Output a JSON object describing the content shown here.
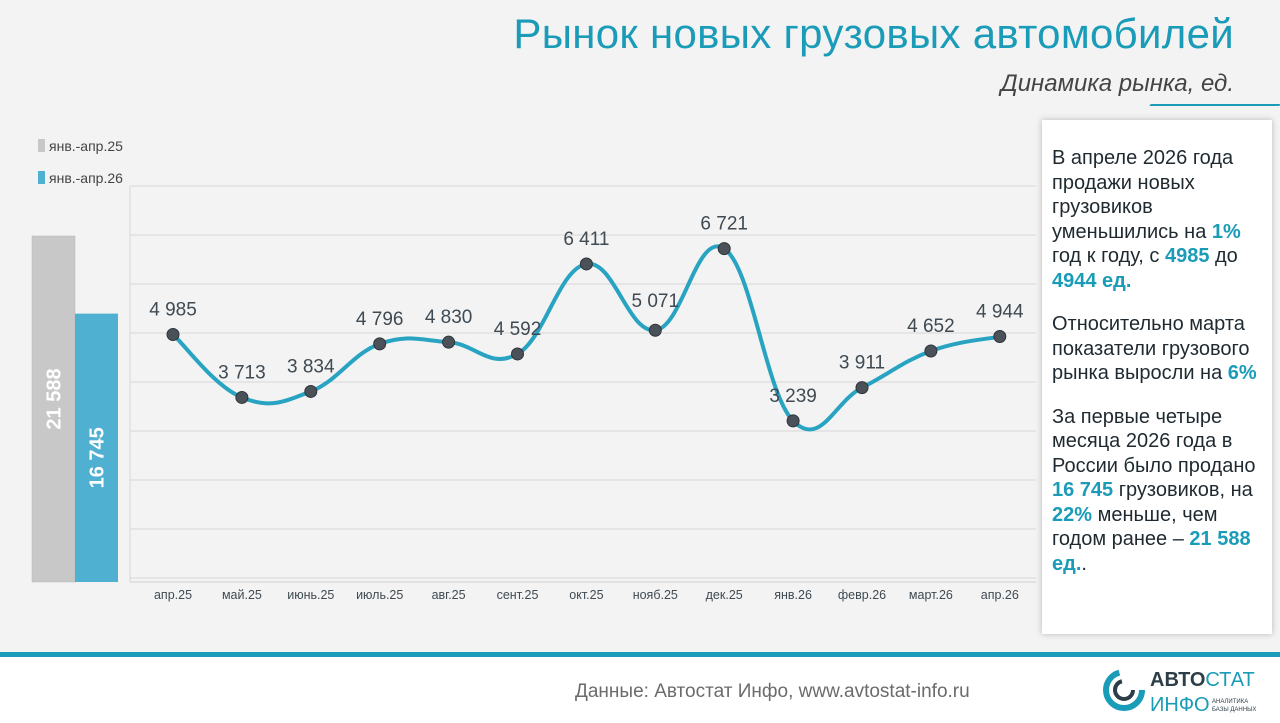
{
  "title": "Рынок новых грузовых автомобилей",
  "subtitle": "Динамика рынка, ед.",
  "info": {
    "p1_a": "В апреле 2026 года продажи новых грузовиков уменьшились на ",
    "p1_pct": "1%",
    "p1_b": " год к году, с ",
    "p1_from": "4985",
    "p1_c": " до ",
    "p1_to": "4944 ед.",
    "p2_a": "Относительно марта показатели грузового  рынка выросли на ",
    "p2_pct": "6%",
    "p3_a": "За первые четыре месяца 2026 года в России было продано ",
    "p3_num": "16 745",
    "p3_b": " грузовиков, на ",
    "p3_pct": "22%",
    "p3_c": " меньше, чем годом ранее – ",
    "p3_prev": "21 588 ед.",
    "p3_end": "."
  },
  "source": "Данные: Автостат Инфо, www.avtostat-info.ru",
  "logo": {
    "line1a": "АВТО",
    "line1b": "СТАТ",
    "line2": "ИНФО",
    "tag1": "АНАЛИТИКА",
    "tag2": "БАЗЫ ДАННЫХ"
  },
  "colors": {
    "accent": "#1a9cb8",
    "line": "#29a3c2",
    "bar_prev": "#c8c8c8",
    "bar_curr": "#4fb0d2",
    "marker": "#4a5158"
  },
  "chart_data": [
    {
      "type": "bar",
      "categories": [
        "янв.-апр.25",
        "янв.-апр.26"
      ],
      "values": [
        21588,
        16745
      ],
      "labels": [
        "21 588",
        "16 745"
      ]
    },
    {
      "type": "line",
      "categories": [
        "апр.25",
        "май.25",
        "июнь.25",
        "июль.25",
        "авг.25",
        "сент.25",
        "окт.25",
        "нояб.25",
        "дек.25",
        "янв.26",
        "февр.26",
        "март.26",
        "апр.26"
      ],
      "values": [
        4985,
        3713,
        3834,
        4796,
        4830,
        4592,
        6411,
        5071,
        6721,
        3239,
        3911,
        4652,
        4944
      ],
      "labels": [
        "4 985",
        "3 713",
        "3 834",
        "4 796",
        "4 830",
        "4 592",
        "6 411",
        "5 071",
        "6 721",
        "3 239",
        "3 911",
        "4 652",
        "4 944"
      ],
      "grid": true
    }
  ]
}
